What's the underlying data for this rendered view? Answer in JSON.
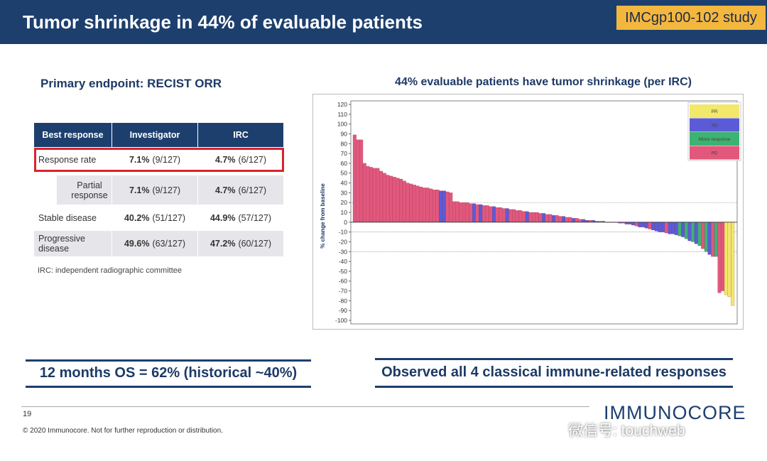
{
  "header": {
    "title": "Tumor shrinkage in 44% of evaluable patients",
    "study": "IMCgp100-102 study"
  },
  "left": {
    "subtitle": "Primary endpoint: RECIST ORR",
    "table": {
      "columns": [
        "Best response",
        "Investigator",
        "IRC"
      ],
      "rows": [
        [
          "Response rate",
          {
            "pct": "7.1%",
            "n": "(9/127)"
          },
          {
            "pct": "4.7%",
            "n": "(6/127)"
          }
        ],
        [
          "Partial response",
          {
            "pct": "7.1%",
            "n": "(9/127)"
          },
          {
            "pct": "4.7%",
            "n": "(6/127)"
          }
        ],
        [
          "Stable disease",
          {
            "pct": "40.2%",
            "n": "(51/127)"
          },
          {
            "pct": "44.9%",
            "n": "(57/127)"
          }
        ],
        [
          "Progressive disease",
          {
            "pct": "49.6%",
            "n": "(63/127)"
          },
          {
            "pct": "47.2%",
            "n": "(60/127)"
          }
        ]
      ]
    },
    "footnote": "IRC: independent radiographic committee"
  },
  "chart_data": {
    "type": "waterfall",
    "title": "44% evaluable patients have tumor shrinkage (per IRC)",
    "y_label": "% change from baseline",
    "ylim": [
      -100,
      120
    ],
    "yticks": [
      -100,
      -90,
      -80,
      -70,
      -60,
      -50,
      -40,
      -30,
      -20,
      -10,
      0,
      10,
      20,
      30,
      40,
      50,
      60,
      70,
      80,
      90,
      100,
      110,
      120
    ],
    "reference_lines": [
      20,
      -10,
      -30
    ],
    "legend": [
      {
        "name": "PR",
        "color": "#f2e86a"
      },
      {
        "name": "SD",
        "color": "#5b5bd8"
      },
      {
        "name": "Minor response",
        "color": "#3cb371"
      },
      {
        "name": "PD",
        "color": "#e2587d"
      }
    ],
    "values": [
      89,
      84,
      84,
      60,
      57,
      56,
      55,
      55,
      52,
      50,
      48,
      47,
      46,
      45,
      44,
      42,
      40,
      39,
      38,
      37,
      36,
      35,
      35,
      34,
      33,
      33,
      32,
      32,
      31,
      30,
      21,
      21,
      20,
      20,
      20,
      19,
      19,
      18,
      18,
      17,
      17,
      16,
      16,
      15,
      15,
      14,
      14,
      13,
      13,
      12,
      12,
      11,
      11,
      10,
      10,
      10,
      9,
      9,
      8,
      8,
      7,
      7,
      6,
      6,
      5,
      5,
      4,
      4,
      3,
      3,
      2,
      2,
      2,
      1,
      1,
      1,
      0,
      0,
      0,
      0,
      -1,
      -1,
      -2,
      -2,
      -3,
      -4,
      -5,
      -5,
      -6,
      -7,
      -8,
      -9,
      -10,
      -10,
      -11,
      -12,
      -12,
      -13,
      -14,
      -15,
      -17,
      -19,
      -20,
      -22,
      -24,
      -27,
      -30,
      -33,
      -35,
      -35,
      -72,
      -70,
      -74,
      -76,
      -85
    ],
    "response": [
      "PD",
      "PD",
      "PD",
      "PD",
      "PD",
      "PD",
      "PD",
      "PD",
      "PD",
      "PD",
      "PD",
      "PD",
      "PD",
      "PD",
      "PD",
      "PD",
      "PD",
      "PD",
      "PD",
      "PD",
      "PD",
      "PD",
      "PD",
      "PD",
      "PD",
      "PD",
      "SD",
      "SD",
      "PD",
      "PD",
      "PD",
      "PD",
      "PD",
      "PD",
      "PD",
      "PD",
      "SD",
      "PD",
      "SD",
      "PD",
      "PD",
      "PD",
      "SD",
      "PD",
      "PD",
      "PD",
      "SD",
      "PD",
      "PD",
      "PD",
      "PD",
      "PD",
      "SD",
      "PD",
      "PD",
      "PD",
      "PD",
      "SD",
      "PD",
      "PD",
      "SD",
      "PD",
      "PD",
      "SD",
      "PD",
      "PD",
      "SD",
      "PD",
      "PD",
      "SD",
      "SD",
      "PD",
      "SD",
      "SD",
      "PD",
      "SD",
      "SD",
      "SD",
      "PD",
      "SD",
      "SD",
      "PD",
      "SD",
      "SD",
      "SD",
      "PD",
      "SD",
      "SD",
      "SD",
      "PD",
      "SD",
      "SD",
      "SD",
      "SD",
      "PD",
      "SD",
      "SD",
      "SD",
      "Minor response",
      "SD",
      "Minor response",
      "SD",
      "Minor response",
      "SD",
      "Minor response",
      "PD",
      "Minor response",
      "SD",
      "PD",
      "Minor response",
      "PD",
      "PD",
      "PR",
      "PR",
      "PR"
    ]
  },
  "bottom": {
    "left_box": "12 months OS = 62% (historical ~40%)",
    "right_box": "Observed all 4 classical immune-related responses"
  },
  "footer": {
    "page": "19",
    "copyright": "© 2020 Immunocore. Not for further reproduction or distribution.",
    "logo": "IMMUNOCORE",
    "watermark": "微信号: touchweb"
  }
}
